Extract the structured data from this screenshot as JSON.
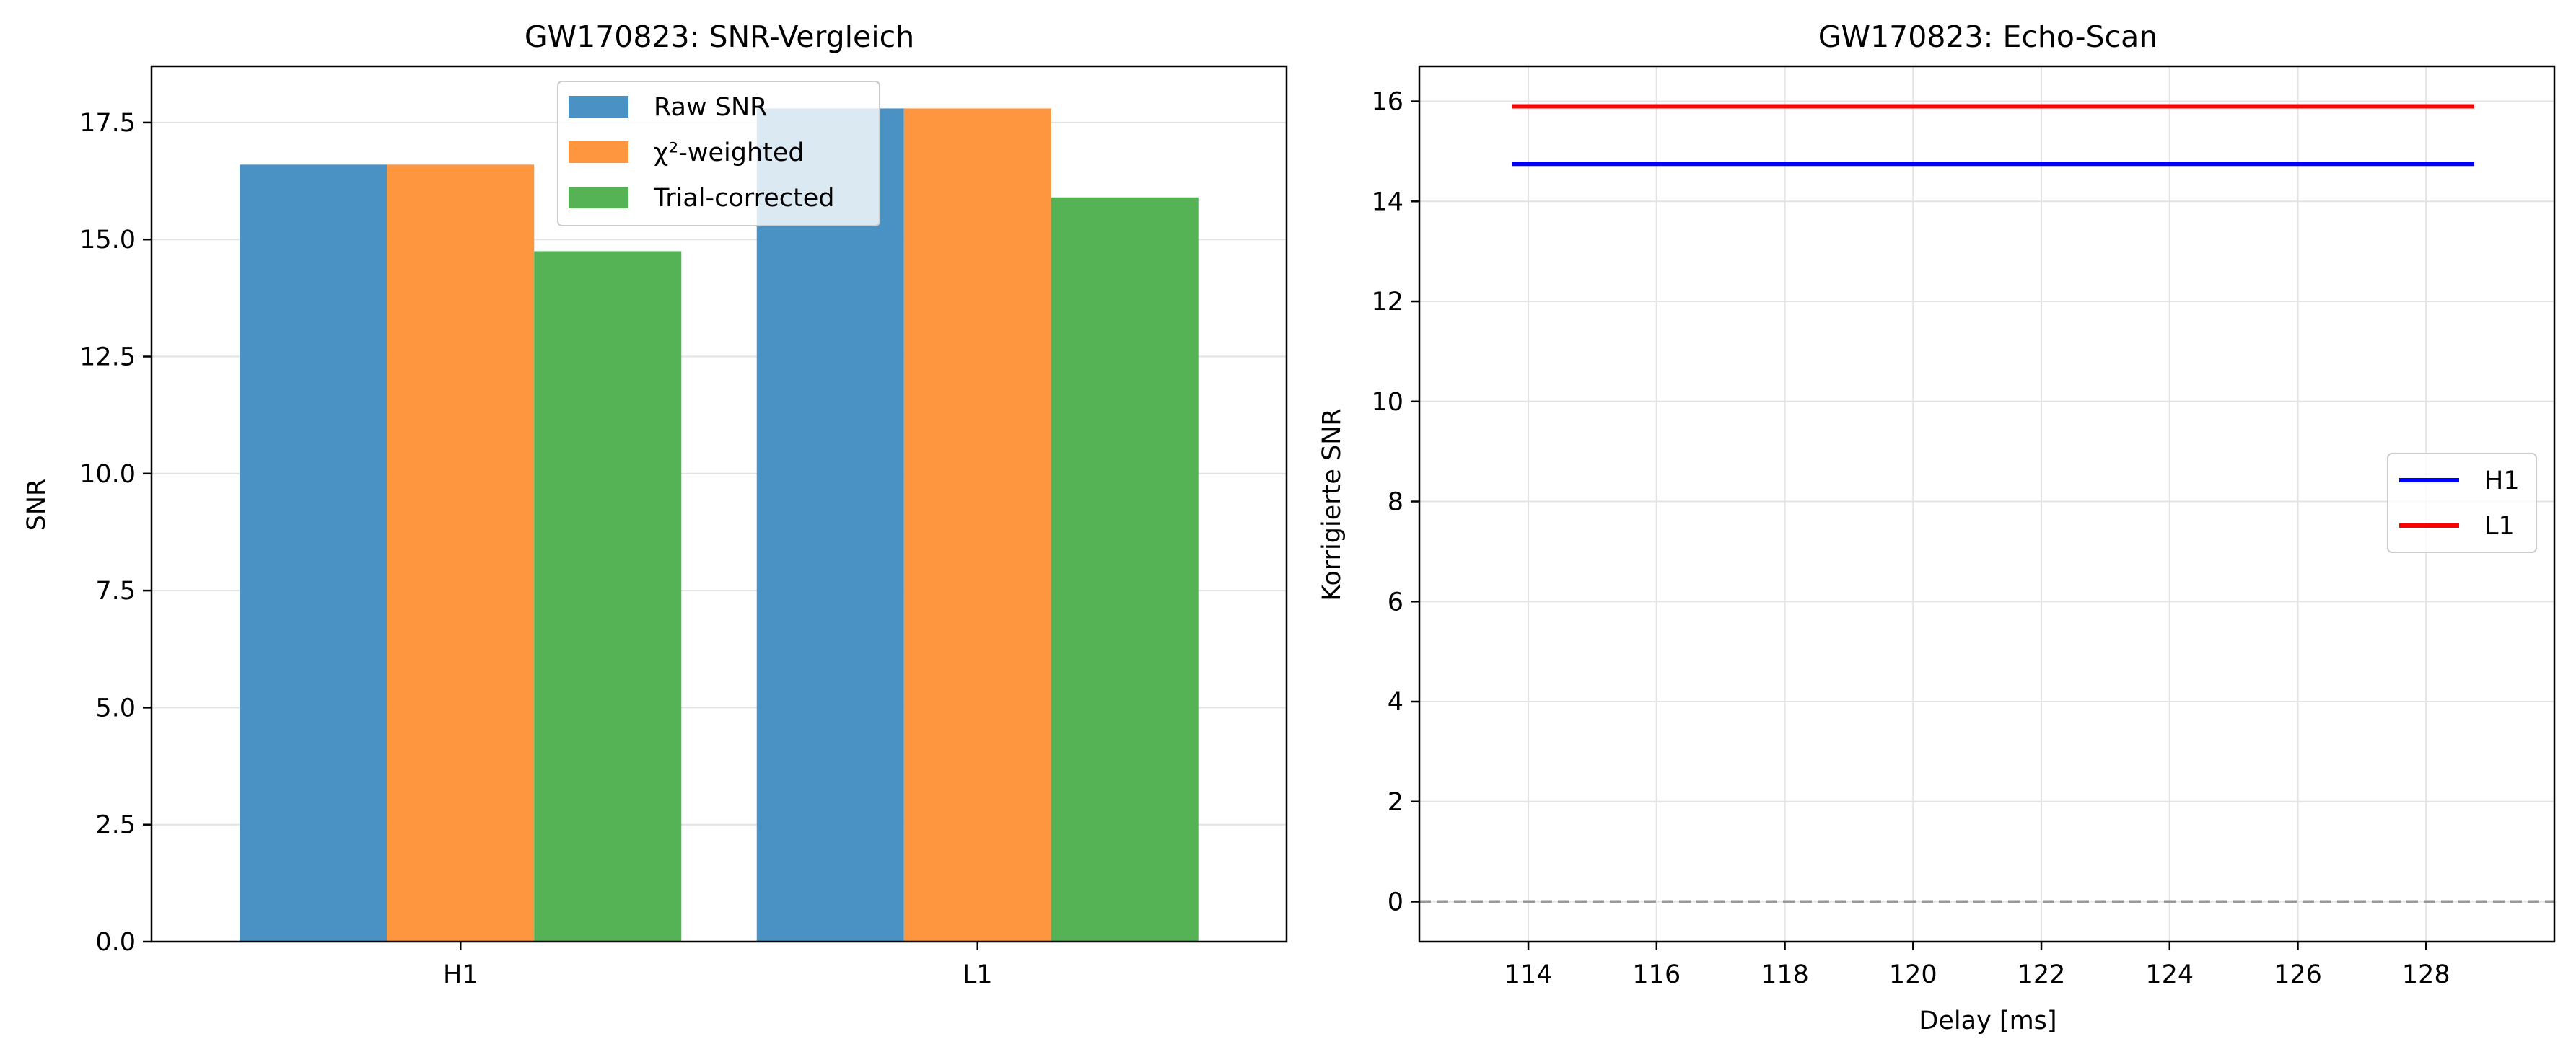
{
  "chart_data": [
    {
      "type": "bar",
      "title": "GW170823: SNR-Vergleich",
      "xlabel": "",
      "ylabel": "SNR",
      "categories": [
        "H1",
        "L1"
      ],
      "series": [
        {
          "name": "Raw SNR",
          "values": [
            16.6,
            17.8
          ],
          "color": "#4a91c4"
        },
        {
          "name": "χ²-weighted",
          "values": [
            16.6,
            17.8
          ],
          "color": "#fd963f"
        },
        {
          "name": "Trial-corrected",
          "values": [
            14.75,
            15.9
          ],
          "color": "#55b356"
        }
      ],
      "ylim": [
        0,
        18.7
      ],
      "yticks": [
        0.0,
        2.5,
        5.0,
        7.5,
        10.0,
        12.5,
        15.0,
        17.5
      ],
      "ytick_labels": [
        "0.0",
        "2.5",
        "5.0",
        "7.5",
        "10.0",
        "12.5",
        "15.0",
        "17.5"
      ],
      "grid": "y",
      "legend_position": "top-center"
    },
    {
      "type": "line",
      "title": "GW170823: Echo-Scan",
      "xlabel": "Delay [ms]",
      "ylabel": "Korrigierte SNR",
      "xlim": [
        112.3,
        130.0
      ],
      "ylim": [
        -0.8,
        16.7
      ],
      "xticks": [
        114,
        116,
        118,
        120,
        122,
        124,
        126,
        128
      ],
      "yticks": [
        0,
        2,
        4,
        6,
        8,
        10,
        12,
        14,
        16
      ],
      "series": [
        {
          "name": "H1",
          "color": "#0000ff",
          "x": [
            113.75,
            128.75
          ],
          "y": [
            14.75,
            14.75
          ]
        },
        {
          "name": "L1",
          "color": "#ff0000",
          "x": [
            113.75,
            128.75
          ],
          "y": [
            15.9,
            15.9
          ]
        }
      ],
      "reference_line": {
        "y": 0,
        "style": "dashed",
        "color": "#999999"
      },
      "grid": "both",
      "legend_position": "center-right"
    }
  ]
}
